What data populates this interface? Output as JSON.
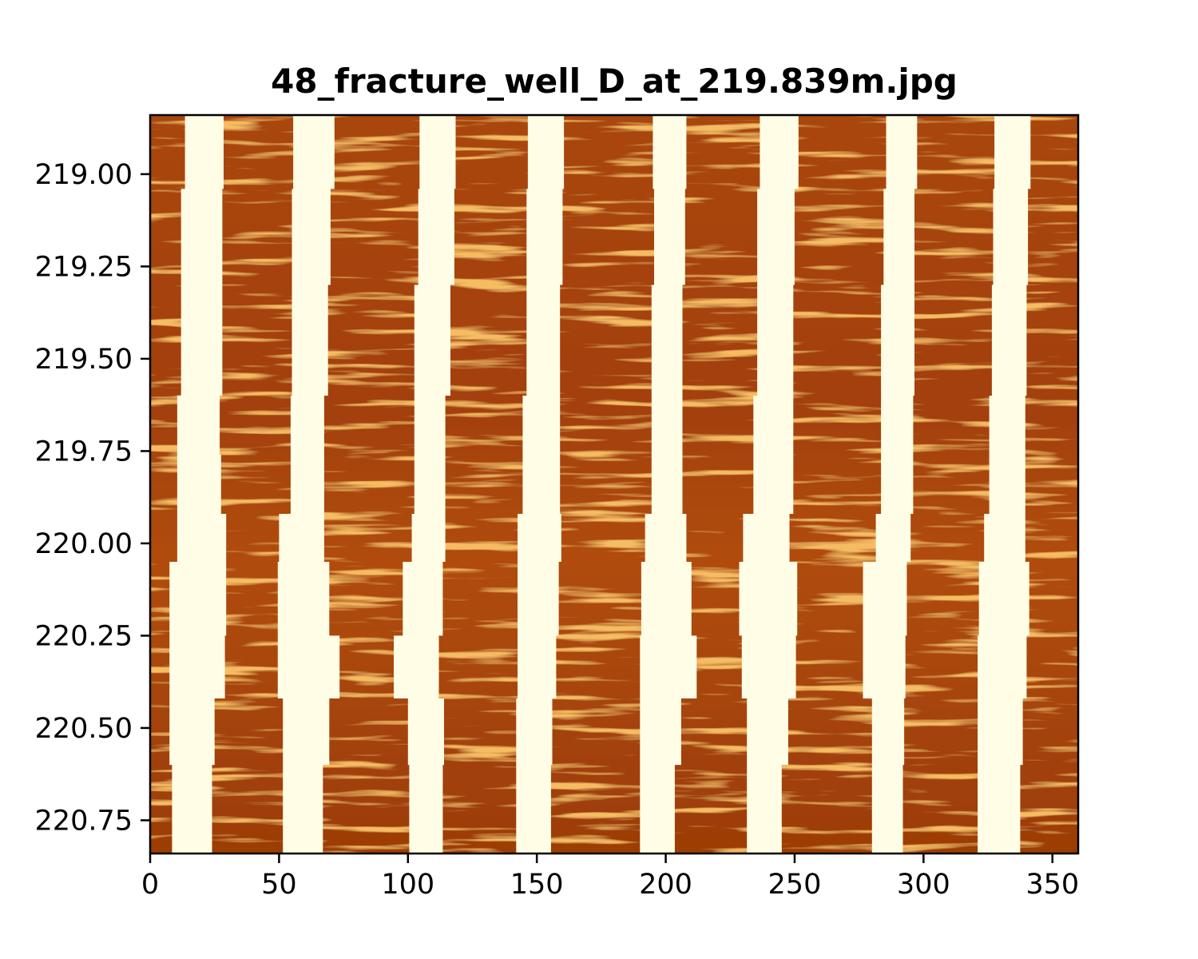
{
  "chart_data": {
    "type": "heatmap",
    "title": "48_fracture_well_D_at_219.839m.jpg",
    "xlabel": "",
    "ylabel": "",
    "xlim": [
      0,
      360
    ],
    "ylim": [
      220.84,
      218.84
    ],
    "y_inverted": true,
    "grid": false,
    "legend": "none",
    "colormap": "YlOrBr",
    "x_ticks": [
      0,
      50,
      100,
      150,
      200,
      250,
      300,
      350
    ],
    "x_tick_labels": [
      "0",
      "50",
      "100",
      "150",
      "200",
      "250",
      "300",
      "350"
    ],
    "y_ticks": [
      219.0,
      219.25,
      219.5,
      219.75,
      220.0,
      220.25,
      220.5,
      220.75
    ],
    "y_tick_labels": [
      "219.00",
      "219.25",
      "219.50",
      "219.75",
      "220.00",
      "220.25",
      "220.50",
      "220.75"
    ],
    "colors": {
      "background_dark": "#9a3a04",
      "background_mid": "#b04a08",
      "highlight": "#e88a2a",
      "pad_stripe": "#fffde6",
      "frame": "#000000"
    },
    "pad_stripes": [
      {
        "depths": [
          218.84,
          219.04,
          219.6,
          219.76,
          219.92,
          220.05,
          220.25,
          220.42,
          220.6,
          220.84
        ],
        "left": [
          13.5,
          12,
          10.5,
          10.5,
          10.5,
          7.5,
          7.5,
          7.5,
          8.5,
          7.5
        ],
        "right": [
          28.5,
          28,
          27,
          27.5,
          29.5,
          29.5,
          29,
          25,
          24,
          22.5
        ]
      },
      {
        "depths": [
          218.84,
          219.04,
          219.3,
          219.6,
          219.92,
          220.05,
          220.25,
          220.42,
          220.6,
          220.84
        ],
        "left": [
          55.5,
          55,
          55,
          54.5,
          50,
          49.5,
          49.5,
          51.5,
          51.5,
          51.5
        ],
        "right": [
          71.5,
          70,
          69,
          67.5,
          67.5,
          69.5,
          73.5,
          69.5,
          67,
          66.5
        ]
      },
      {
        "depths": [
          218.84,
          219.04,
          219.3,
          219.6,
          219.92,
          220.05,
          220.25,
          220.42,
          220.6,
          220.84
        ],
        "left": [
          104.5,
          104,
          102.5,
          102.5,
          101.5,
          98,
          94.5,
          100,
          100.5,
          99.5
        ],
        "right": [
          118.5,
          118,
          116.5,
          114.5,
          114.5,
          113.5,
          112,
          114,
          113.5,
          112.5
        ]
      },
      {
        "depths": [
          218.84,
          219.04,
          219.3,
          219.6,
          219.92,
          220.05,
          220.25,
          220.42,
          220.6,
          220.84
        ],
        "left": [
          146.5,
          146,
          146,
          144.5,
          142.5,
          142.5,
          142.5,
          142,
          142,
          141.5
        ],
        "right": [
          160.5,
          160,
          159,
          159,
          159.5,
          158.5,
          157.5,
          156,
          155.5,
          154.5
        ]
      },
      {
        "depths": [
          218.84,
          219.04,
          219.3,
          219.6,
          219.92,
          220.05,
          220.25,
          220.42,
          220.6,
          220.84
        ],
        "left": [
          195,
          195.5,
          194.5,
          194.5,
          192,
          190.5,
          190,
          190,
          190,
          189.5
        ],
        "right": [
          208,
          207.5,
          206.5,
          206.5,
          208,
          210,
          212,
          206,
          203.5,
          203
        ]
      },
      {
        "depths": [
          218.84,
          219.04,
          219.3,
          219.6,
          219.92,
          220.05,
          220.25,
          220.42,
          220.6,
          220.84
        ],
        "left": [
          236.5,
          235.5,
          235.5,
          234,
          230,
          228.5,
          229.5,
          231.5,
          231.5,
          231.5
        ],
        "right": [
          251.5,
          250,
          249.5,
          249.5,
          248,
          251,
          250.5,
          247.5,
          245,
          244.5
        ]
      },
      {
        "depths": [
          218.84,
          219.04,
          219.3,
          219.6,
          219.92,
          220.05,
          220.25,
          220.42,
          220.6,
          220.84
        ],
        "left": [
          285.5,
          284.5,
          283.5,
          283.5,
          281.5,
          276.5,
          276.5,
          280,
          280,
          279.5
        ],
        "right": [
          297.5,
          296.5,
          296.5,
          296,
          295,
          293.5,
          293,
          292.5,
          292,
          292.5
        ]
      },
      {
        "depths": [
          218.84,
          219.04,
          219.3,
          219.6,
          219.92,
          220.05,
          220.25,
          220.42,
          220.6,
          220.84
        ],
        "left": [
          327.5,
          327,
          326.5,
          325.5,
          323.5,
          321.5,
          321,
          321,
          321,
          321
        ],
        "right": [
          341.5,
          340.5,
          340,
          339.5,
          339.5,
          341,
          340,
          338.5,
          337.5,
          336
        ]
      }
    ]
  }
}
